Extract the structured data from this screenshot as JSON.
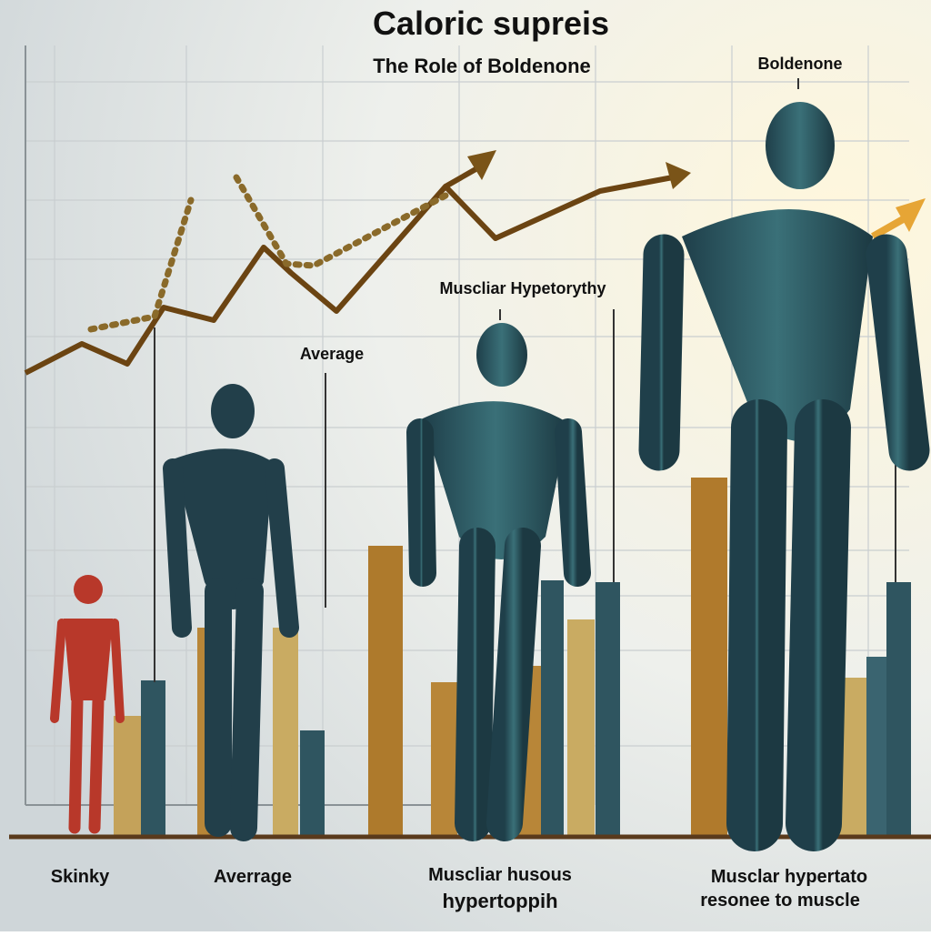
{
  "header": {
    "title": "Caloric supreis",
    "subtitle": "The Role of Boldenone"
  },
  "annotations": [
    "Boldenone",
    "Muscliar Hypetorythy",
    "Average"
  ],
  "labels": [
    {
      "lines": [
        "Skinky"
      ]
    },
    {
      "lines": [
        "Averrage"
      ]
    },
    {
      "lines": [
        "Muscliar husous",
        "hypertoppih"
      ]
    },
    {
      "lines": [
        "Musclar hypertato",
        "resonee to muscle"
      ]
    }
  ]
}
